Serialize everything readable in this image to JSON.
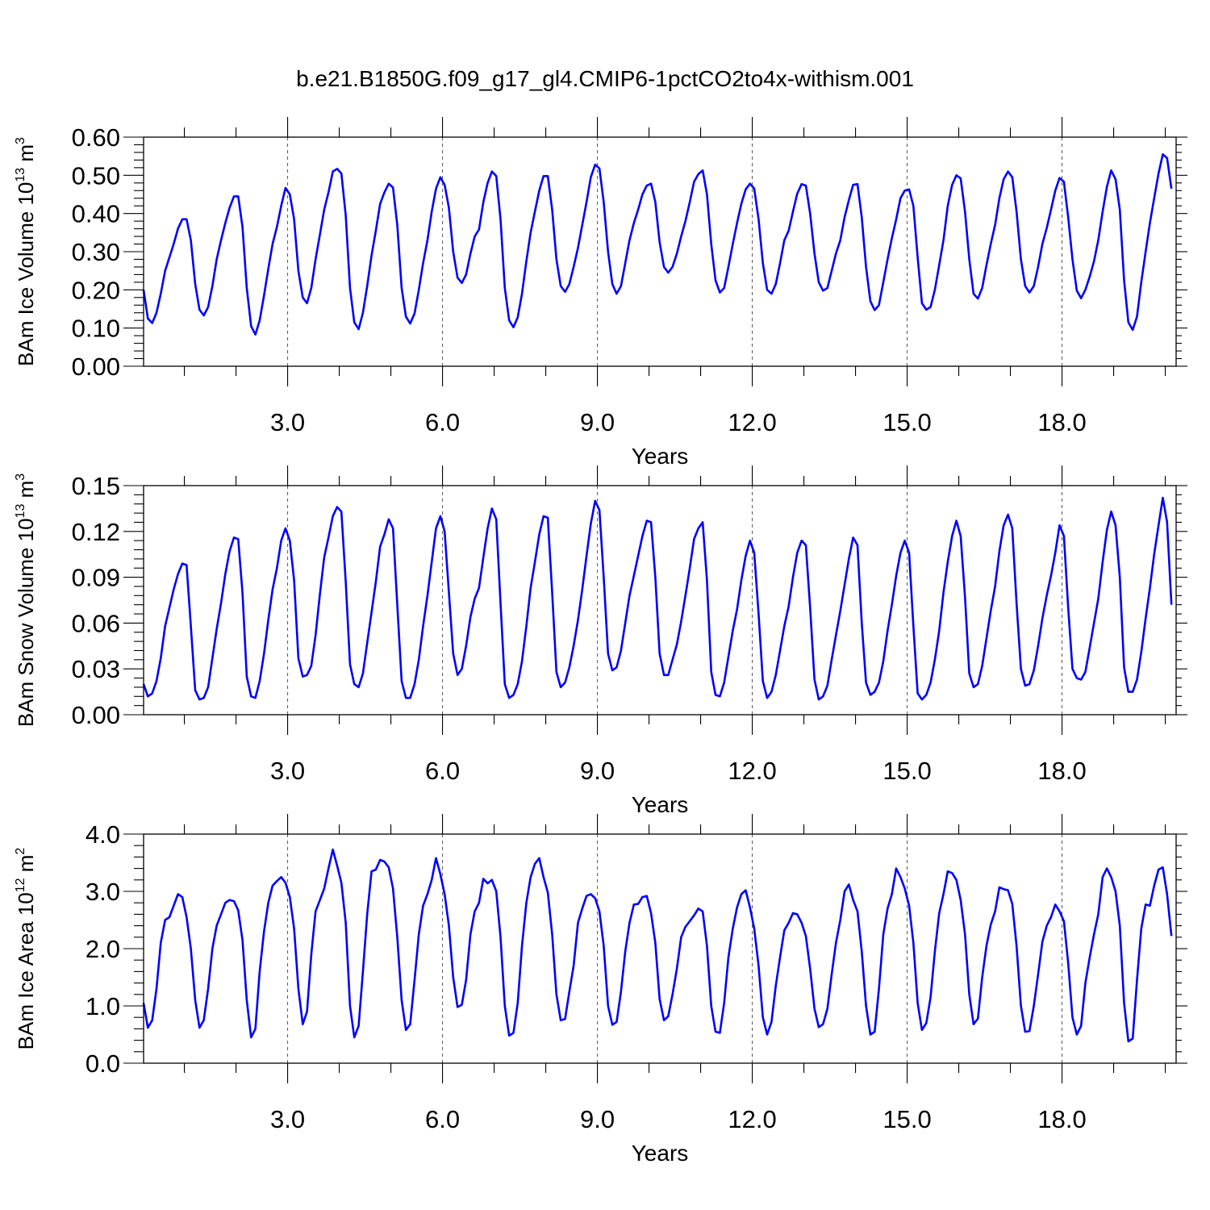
{
  "title": "b.e21.B1850G.f09_g17_gl4.CMIP6-1pctCO2to4x-withism.001",
  "colors": {
    "line": "#0000ff",
    "axis": "#000000",
    "grid": "#555555"
  },
  "chart_data": [
    {
      "type": "line",
      "xlabel": "Years",
      "ylabel": "BAm Ice Volume 10",
      "ylabel_exp": "13",
      "ylabel_unit": " m",
      "ylabel_unit_exp": "3",
      "xlim": [
        0.21,
        20.21
      ],
      "ylim": [
        0,
        0.6
      ],
      "x_ticks": [
        3,
        6,
        9,
        12,
        15,
        18
      ],
      "x_tick_labels": [
        "3.0",
        "6.0",
        "9.0",
        "12.0",
        "15.0",
        "18.0"
      ],
      "y_ticks": [
        0,
        0.1,
        0.2,
        0.3,
        0.4,
        0.5,
        0.6
      ],
      "y_tick_labels": [
        "0.00",
        "0.10",
        "0.20",
        "0.30",
        "0.40",
        "0.50",
        "0.60"
      ],
      "vertical_grid": "dashed at major x ticks",
      "x_start": 0.21,
      "x_step": 0.0833,
      "values": [
        0.2,
        0.125,
        0.113,
        0.14,
        0.19,
        0.25,
        0.285,
        0.32,
        0.36,
        0.385,
        0.385,
        0.33,
        0.215,
        0.148,
        0.133,
        0.155,
        0.21,
        0.28,
        0.33,
        0.375,
        0.415,
        0.445,
        0.445,
        0.365,
        0.205,
        0.105,
        0.083,
        0.12,
        0.185,
        0.255,
        0.32,
        0.365,
        0.42,
        0.467,
        0.45,
        0.385,
        0.25,
        0.18,
        0.165,
        0.205,
        0.28,
        0.345,
        0.41,
        0.455,
        0.51,
        0.517,
        0.505,
        0.395,
        0.205,
        0.115,
        0.097,
        0.14,
        0.21,
        0.29,
        0.355,
        0.425,
        0.455,
        0.478,
        0.468,
        0.37,
        0.205,
        0.13,
        0.112,
        0.138,
        0.2,
        0.27,
        0.33,
        0.405,
        0.465,
        0.495,
        0.475,
        0.415,
        0.3,
        0.232,
        0.218,
        0.24,
        0.295,
        0.34,
        0.358,
        0.43,
        0.48,
        0.51,
        0.498,
        0.385,
        0.205,
        0.12,
        0.102,
        0.128,
        0.19,
        0.275,
        0.35,
        0.405,
        0.46,
        0.498,
        0.498,
        0.41,
        0.28,
        0.21,
        0.195,
        0.215,
        0.26,
        0.31,
        0.37,
        0.43,
        0.495,
        0.528,
        0.518,
        0.43,
        0.3,
        0.215,
        0.19,
        0.21,
        0.27,
        0.33,
        0.375,
        0.41,
        0.45,
        0.473,
        0.478,
        0.43,
        0.325,
        0.26,
        0.245,
        0.26,
        0.295,
        0.34,
        0.38,
        0.43,
        0.483,
        0.503,
        0.513,
        0.45,
        0.32,
        0.225,
        0.193,
        0.205,
        0.26,
        0.32,
        0.375,
        0.425,
        0.463,
        0.478,
        0.465,
        0.385,
        0.27,
        0.2,
        0.19,
        0.215,
        0.27,
        0.33,
        0.355,
        0.405,
        0.452,
        0.477,
        0.473,
        0.4,
        0.295,
        0.22,
        0.198,
        0.205,
        0.25,
        0.295,
        0.33,
        0.39,
        0.435,
        0.475,
        0.477,
        0.39,
        0.26,
        0.17,
        0.147,
        0.16,
        0.22,
        0.28,
        0.335,
        0.385,
        0.44,
        0.46,
        0.463,
        0.42,
        0.285,
        0.165,
        0.148,
        0.155,
        0.2,
        0.265,
        0.33,
        0.42,
        0.475,
        0.5,
        0.492,
        0.405,
        0.28,
        0.19,
        0.177,
        0.205,
        0.265,
        0.32,
        0.37,
        0.44,
        0.49,
        0.51,
        0.495,
        0.405,
        0.28,
        0.21,
        0.193,
        0.21,
        0.26,
        0.32,
        0.362,
        0.41,
        0.46,
        0.493,
        0.483,
        0.39,
        0.28,
        0.198,
        0.178,
        0.2,
        0.235,
        0.275,
        0.33,
        0.405,
        0.47,
        0.513,
        0.49,
        0.41,
        0.225,
        0.115,
        0.095,
        0.13,
        0.22,
        0.3,
        0.375,
        0.44,
        0.505,
        0.555,
        0.545,
        0.465
      ]
    },
    {
      "type": "line",
      "xlabel": "Years",
      "ylabel": "BAm Snow Volume 10",
      "ylabel_exp": "13",
      "ylabel_unit": " m",
      "ylabel_unit_exp": "3",
      "xlim": [
        0.21,
        20.21
      ],
      "ylim": [
        0,
        0.15
      ],
      "x_ticks": [
        3,
        6,
        9,
        12,
        15,
        18
      ],
      "x_tick_labels": [
        "3.0",
        "6.0",
        "9.0",
        "12.0",
        "15.0",
        "18.0"
      ],
      "y_ticks": [
        0,
        0.03,
        0.06,
        0.09,
        0.12,
        0.15
      ],
      "y_tick_labels": [
        "0.00",
        "0.03",
        "0.06",
        "0.09",
        "0.12",
        "0.15"
      ],
      "vertical_grid": "dashed at major x ticks",
      "x_start": 0.21,
      "x_step": 0.0833,
      "values": [
        0.02,
        0.012,
        0.014,
        0.022,
        0.037,
        0.058,
        0.07,
        0.082,
        0.092,
        0.099,
        0.098,
        0.058,
        0.016,
        0.01,
        0.011,
        0.018,
        0.037,
        0.056,
        0.073,
        0.092,
        0.107,
        0.116,
        0.115,
        0.08,
        0.025,
        0.012,
        0.011,
        0.022,
        0.04,
        0.062,
        0.082,
        0.096,
        0.114,
        0.122,
        0.114,
        0.088,
        0.037,
        0.025,
        0.026,
        0.032,
        0.052,
        0.079,
        0.103,
        0.116,
        0.13,
        0.136,
        0.133,
        0.087,
        0.033,
        0.02,
        0.018,
        0.027,
        0.047,
        0.067,
        0.087,
        0.11,
        0.118,
        0.128,
        0.122,
        0.072,
        0.022,
        0.011,
        0.011,
        0.02,
        0.036,
        0.058,
        0.078,
        0.1,
        0.122,
        0.13,
        0.12,
        0.08,
        0.04,
        0.026,
        0.03,
        0.045,
        0.064,
        0.076,
        0.083,
        0.103,
        0.122,
        0.135,
        0.128,
        0.073,
        0.02,
        0.011,
        0.013,
        0.02,
        0.035,
        0.058,
        0.083,
        0.1,
        0.118,
        0.13,
        0.129,
        0.08,
        0.028,
        0.018,
        0.021,
        0.031,
        0.045,
        0.062,
        0.082,
        0.104,
        0.125,
        0.14,
        0.134,
        0.09,
        0.04,
        0.029,
        0.031,
        0.042,
        0.06,
        0.078,
        0.091,
        0.104,
        0.117,
        0.127,
        0.126,
        0.09,
        0.04,
        0.026,
        0.026,
        0.036,
        0.046,
        0.061,
        0.078,
        0.096,
        0.115,
        0.122,
        0.126,
        0.088,
        0.028,
        0.013,
        0.012,
        0.021,
        0.038,
        0.055,
        0.069,
        0.088,
        0.104,
        0.114,
        0.106,
        0.066,
        0.022,
        0.011,
        0.015,
        0.026,
        0.042,
        0.058,
        0.071,
        0.09,
        0.106,
        0.114,
        0.111,
        0.07,
        0.023,
        0.01,
        0.012,
        0.019,
        0.036,
        0.052,
        0.068,
        0.085,
        0.102,
        0.116,
        0.111,
        0.06,
        0.021,
        0.013,
        0.015,
        0.021,
        0.035,
        0.055,
        0.072,
        0.091,
        0.106,
        0.114,
        0.106,
        0.058,
        0.014,
        0.01,
        0.013,
        0.021,
        0.036,
        0.055,
        0.08,
        0.1,
        0.117,
        0.127,
        0.117,
        0.077,
        0.027,
        0.018,
        0.02,
        0.032,
        0.05,
        0.068,
        0.084,
        0.107,
        0.124,
        0.131,
        0.122,
        0.073,
        0.03,
        0.019,
        0.02,
        0.029,
        0.045,
        0.063,
        0.078,
        0.091,
        0.106,
        0.124,
        0.117,
        0.07,
        0.03,
        0.024,
        0.023,
        0.028,
        0.044,
        0.06,
        0.076,
        0.1,
        0.121,
        0.133,
        0.124,
        0.09,
        0.031,
        0.015,
        0.015,
        0.023,
        0.041,
        0.063,
        0.083,
        0.105,
        0.124,
        0.142,
        0.126,
        0.072
      ]
    },
    {
      "type": "line",
      "xlabel": "Years",
      "ylabel": "BAm Ice Area 10",
      "ylabel_exp": "12",
      "ylabel_unit": " m",
      "ylabel_unit_exp": "2",
      "xlim": [
        0.21,
        20.21
      ],
      "ylim": [
        0,
        4
      ],
      "x_ticks": [
        3,
        6,
        9,
        12,
        15,
        18
      ],
      "x_tick_labels": [
        "3.0",
        "6.0",
        "9.0",
        "12.0",
        "15.0",
        "18.0"
      ],
      "y_ticks": [
        0,
        1,
        2,
        3,
        4
      ],
      "y_tick_labels": [
        "0.0",
        "1.0",
        "2.0",
        "3.0",
        "4.0"
      ],
      "vertical_grid": "dashed at major x ticks",
      "x_start": 0.21,
      "x_step": 0.0833,
      "values": [
        1.05,
        0.62,
        0.75,
        1.3,
        2.1,
        2.5,
        2.55,
        2.75,
        2.95,
        2.9,
        2.55,
        2.0,
        1.1,
        0.62,
        0.75,
        1.3,
        2.0,
        2.4,
        2.6,
        2.8,
        2.85,
        2.83,
        2.67,
        2.15,
        1.1,
        0.45,
        0.6,
        1.6,
        2.3,
        2.8,
        3.1,
        3.18,
        3.25,
        3.15,
        2.9,
        2.35,
        1.3,
        0.68,
        0.9,
        1.9,
        2.65,
        2.85,
        3.05,
        3.4,
        3.73,
        3.45,
        3.15,
        2.45,
        1.0,
        0.45,
        0.65,
        1.6,
        2.6,
        3.35,
        3.38,
        3.55,
        3.52,
        3.42,
        3.05,
        2.2,
        1.1,
        0.58,
        0.68,
        1.45,
        2.25,
        2.75,
        2.95,
        3.2,
        3.58,
        3.3,
        2.95,
        2.4,
        1.5,
        0.98,
        1.02,
        1.45,
        2.25,
        2.65,
        2.8,
        3.22,
        3.14,
        3.2,
        3.0,
        2.2,
        1.0,
        0.48,
        0.53,
        1.05,
        2.05,
        2.8,
        3.25,
        3.48,
        3.58,
        3.25,
        2.98,
        2.25,
        1.2,
        0.75,
        0.77,
        1.25,
        1.7,
        2.45,
        2.7,
        2.92,
        2.95,
        2.88,
        2.65,
        2.05,
        1.0,
        0.67,
        0.72,
        1.25,
        1.95,
        2.45,
        2.77,
        2.78,
        2.9,
        2.92,
        2.62,
        2.1,
        1.12,
        0.75,
        0.82,
        1.2,
        1.65,
        2.2,
        2.38,
        2.48,
        2.58,
        2.7,
        2.65,
        2.05,
        1.0,
        0.55,
        0.53,
        1.05,
        1.85,
        2.35,
        2.72,
        2.95,
        3.02,
        2.72,
        2.35,
        1.7,
        0.8,
        0.5,
        0.72,
        1.35,
        1.85,
        2.32,
        2.45,
        2.62,
        2.6,
        2.45,
        2.22,
        1.65,
        0.95,
        0.63,
        0.68,
        0.95,
        1.55,
        2.1,
        2.5,
        3.0,
        3.12,
        2.85,
        2.65,
        1.95,
        1.0,
        0.5,
        0.55,
        1.3,
        2.25,
        2.7,
        2.95,
        3.4,
        3.25,
        3.05,
        2.75,
        2.1,
        1.05,
        0.58,
        0.7,
        1.15,
        1.95,
        2.62,
        2.95,
        3.35,
        3.32,
        3.2,
        2.85,
        2.25,
        1.2,
        0.68,
        0.78,
        1.5,
        2.05,
        2.42,
        2.65,
        3.07,
        3.04,
        3.02,
        2.78,
        2.05,
        1.0,
        0.55,
        0.56,
        1.0,
        1.55,
        2.12,
        2.4,
        2.55,
        2.77,
        2.65,
        2.48,
        1.75,
        0.8,
        0.5,
        0.65,
        1.4,
        1.85,
        2.25,
        2.6,
        3.25,
        3.4,
        3.25,
        3.0,
        2.4,
        1.05,
        0.38,
        0.43,
        1.45,
        2.35,
        2.77,
        2.75,
        3.1,
        3.38,
        3.42,
        2.95,
        2.22
      ]
    }
  ]
}
